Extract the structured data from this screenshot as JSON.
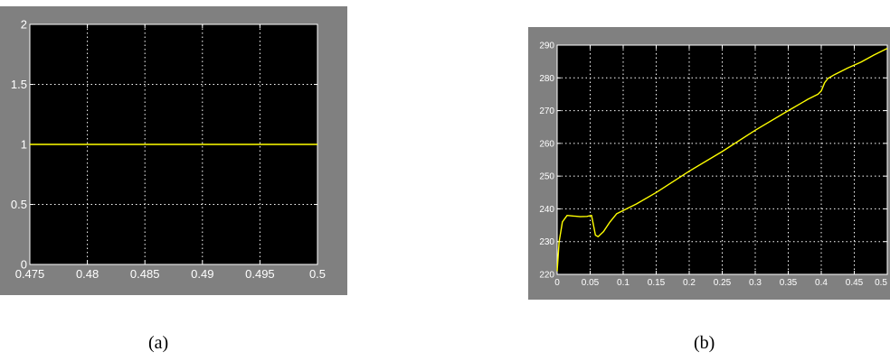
{
  "captions": {
    "a": "(a)",
    "b": "(b)"
  },
  "chart_data": [
    {
      "type": "line",
      "title": "",
      "xlabel": "",
      "ylabel": "",
      "xlim": [
        0.475,
        0.5
      ],
      "ylim": [
        0,
        2
      ],
      "xticks": [
        "0.475",
        "0.48",
        "0.485",
        "0.49",
        "0.495",
        "0.5"
      ],
      "yticks": [
        "0",
        "0.5",
        "1",
        "1.5",
        "2"
      ],
      "grid": true,
      "background": "#000000",
      "line_color": "#ffff00",
      "series": [
        {
          "x": [
            0.475,
            0.5
          ],
          "y": [
            1,
            1
          ]
        }
      ]
    },
    {
      "type": "line",
      "title": "",
      "xlabel": "",
      "ylabel": "",
      "xlim": [
        0,
        0.5
      ],
      "ylim": [
        220,
        290
      ],
      "xticks": [
        "0",
        "0.05",
        "0.1",
        "0.15",
        "0.2",
        "0.25",
        "0.3",
        "0.35",
        "0.4",
        "0.45",
        "0.5"
      ],
      "yticks": [
        "220",
        "230",
        "240",
        "250",
        "260",
        "270",
        "280",
        "290"
      ],
      "grid": true,
      "background": "#000000",
      "line_color": "#ffff00",
      "series": [
        {
          "x": [
            0,
            0.003,
            0.008,
            0.015,
            0.025,
            0.035,
            0.045,
            0.052,
            0.055,
            0.058,
            0.062,
            0.07,
            0.08,
            0.09,
            0.1,
            0.12,
            0.15,
            0.2,
            0.25,
            0.3,
            0.35,
            0.38,
            0.395,
            0.4,
            0.405,
            0.41,
            0.42,
            0.44,
            0.46,
            0.48,
            0.5
          ],
          "y": [
            221,
            230,
            236,
            238,
            237.8,
            237.6,
            237.7,
            238,
            235,
            232,
            231.5,
            233,
            236,
            238.5,
            239.5,
            241.5,
            245,
            251.5,
            257.5,
            264,
            270,
            273.5,
            275,
            276,
            278.5,
            279.8,
            281,
            283,
            284.8,
            287,
            289
          ]
        }
      ]
    }
  ]
}
